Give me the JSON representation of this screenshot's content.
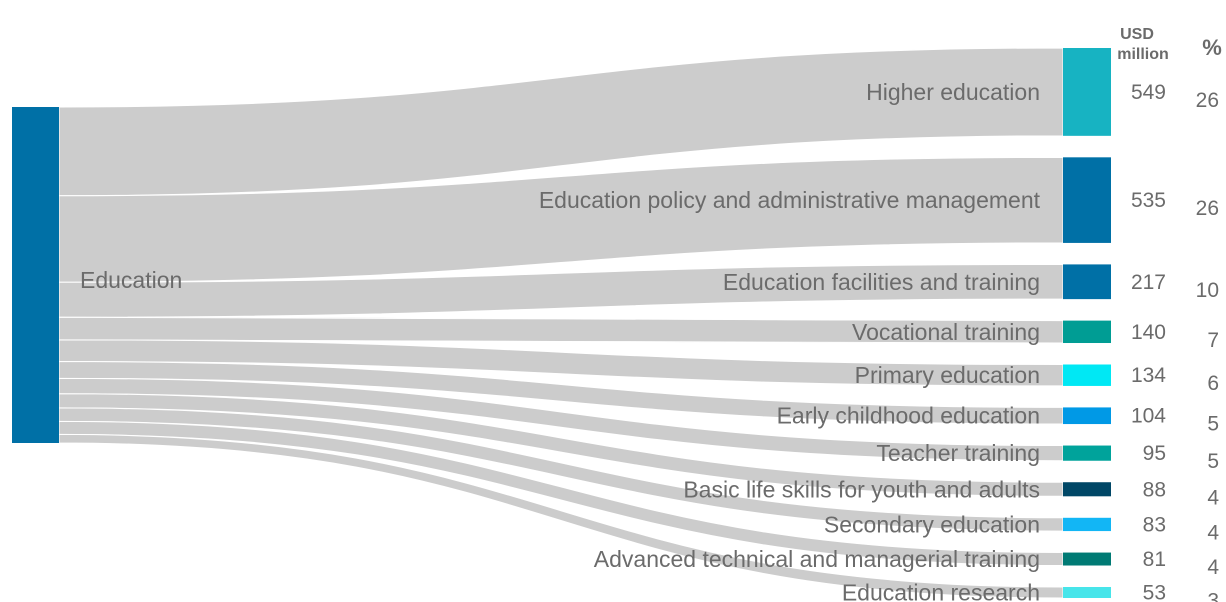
{
  "chart_data": {
    "type": "sankey",
    "source": {
      "label": "Education",
      "color": "#0070a6"
    },
    "headers": {
      "value": [
        "USD",
        "million"
      ],
      "share": "%"
    },
    "flow_color": "#cccccc",
    "targets": [
      {
        "label": "Higher education",
        "value": 549,
        "percent": 26,
        "color": "#17b3c2"
      },
      {
        "label": "Education policy and administrative management",
        "value": 535,
        "percent": 26,
        "color": "#0070a6"
      },
      {
        "label": "Education facilities and training",
        "value": 217,
        "percent": 10,
        "color": "#0070a6"
      },
      {
        "label": "Vocational training",
        "value": 140,
        "percent": 7,
        "color": "#009d94"
      },
      {
        "label": "Primary education",
        "value": 134,
        "percent": 6,
        "color": "#00e8f4"
      },
      {
        "label": "Early childhood education",
        "value": 104,
        "percent": 5,
        "color": "#0099e6"
      },
      {
        "label": "Teacher training",
        "value": 95,
        "percent": 5,
        "color": "#00a39b"
      },
      {
        "label": "Basic life skills for youth and adults",
        "value": 88,
        "percent": 4,
        "color": "#004766"
      },
      {
        "label": "Secondary education",
        "value": 83,
        "percent": 4,
        "color": "#12b6f5"
      },
      {
        "label": "Advanced technical and managerial training",
        "value": 81,
        "percent": 4,
        "color": "#007a74"
      },
      {
        "label": "Education research",
        "value": 53,
        "percent": 3,
        "color": "#47e5ea"
      }
    ]
  }
}
